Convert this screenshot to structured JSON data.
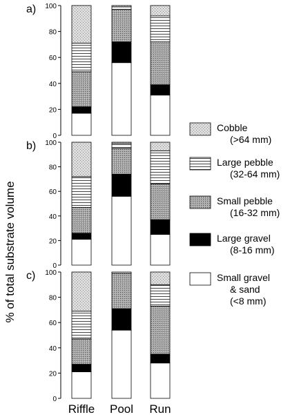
{
  "ylabel": "% of total substrate volume",
  "legend": [
    {
      "key": "cobble",
      "line1": "Cobble",
      "line2": "(>64 mm)",
      "line3": ""
    },
    {
      "key": "large_pebble",
      "line1": "Large pebble",
      "line2": "(32-64 mm)",
      "line3": ""
    },
    {
      "key": "small_pebble",
      "line1": "Small pebble",
      "line2": "(16-32 mm)",
      "line3": ""
    },
    {
      "key": "large_gravel",
      "line1": "Large gravel",
      "line2": "(8-16 mm)",
      "line3": ""
    },
    {
      "key": "small_gravel_sand",
      "line1": "Small gravel",
      "line2": "& sand",
      "line3": "(<8 mm)"
    }
  ],
  "fills": {
    "cobble": "#d4d4d4",
    "small_pebble": "#a3a3a3",
    "large_gravel": "#000000",
    "small_gravel_sand": "#ffffff",
    "large_pebble_line": "#333333"
  },
  "chart_data": [
    {
      "type": "bar",
      "stacked": true,
      "title": "a)",
      "categories": [
        "Riffle",
        "Pool",
        "Run"
      ],
      "ylim": [
        0,
        100
      ],
      "yticks": [
        "0",
        "20",
        "40",
        "60",
        "80",
        "100"
      ],
      "series": [
        {
          "name": "Small gravel & sand (<8 mm)",
          "key": "small_gravel_sand",
          "values": [
            17,
            56,
            31
          ]
        },
        {
          "name": "Large gravel (8-16 mm)",
          "key": "large_gravel",
          "values": [
            5,
            16,
            8
          ]
        },
        {
          "name": "Small pebble (16-32 mm)",
          "key": "small_pebble",
          "values": [
            27,
            25,
            33
          ]
        },
        {
          "name": "Large pebble (32-64 mm)",
          "key": "large_pebble",
          "values": [
            22,
            2,
            20
          ]
        },
        {
          "name": "Cobble (>64 mm)",
          "key": "cobble",
          "values": [
            29,
            1,
            8
          ]
        }
      ]
    },
    {
      "type": "bar",
      "stacked": true,
      "title": "b)",
      "categories": [
        "Riffle",
        "Pool",
        "Run"
      ],
      "ylim": [
        0,
        100
      ],
      "yticks": [
        "0",
        "20",
        "40",
        "60",
        "80",
        "100"
      ],
      "series": [
        {
          "name": "Small gravel & sand (<8 mm)",
          "key": "small_gravel_sand",
          "values": [
            21,
            56,
            25
          ]
        },
        {
          "name": "Large gravel (8-16 mm)",
          "key": "large_gravel",
          "values": [
            5,
            18,
            12
          ]
        },
        {
          "name": "Small pebble (16-32 mm)",
          "key": "small_pebble",
          "values": [
            21,
            21,
            29
          ]
        },
        {
          "name": "Large pebble (32-64 mm)",
          "key": "large_pebble",
          "values": [
            25,
            4,
            27
          ]
        },
        {
          "name": "Cobble (>64 mm)",
          "key": "cobble",
          "values": [
            28,
            1,
            7
          ]
        }
      ]
    },
    {
      "type": "bar",
      "stacked": true,
      "title": "c)",
      "categories": [
        "Riffle",
        "Pool",
        "Run"
      ],
      "ylim": [
        0,
        100
      ],
      "yticks": [
        "0",
        "20",
        "40",
        "60",
        "80",
        "100"
      ],
      "series": [
        {
          "name": "Small gravel & sand (<8 mm)",
          "key": "small_gravel_sand",
          "values": [
            21,
            54,
            28
          ]
        },
        {
          "name": "Large gravel (8-16 mm)",
          "key": "large_gravel",
          "values": [
            6,
            17,
            7
          ]
        },
        {
          "name": "Small pebble (16-32 mm)",
          "key": "small_pebble",
          "values": [
            20,
            28,
            38
          ]
        },
        {
          "name": "Large pebble (32-64 mm)",
          "key": "large_pebble",
          "values": [
            22,
            1,
            17
          ]
        },
        {
          "name": "Cobble (>64 mm)",
          "key": "cobble",
          "values": [
            31,
            0,
            10
          ]
        }
      ]
    }
  ]
}
